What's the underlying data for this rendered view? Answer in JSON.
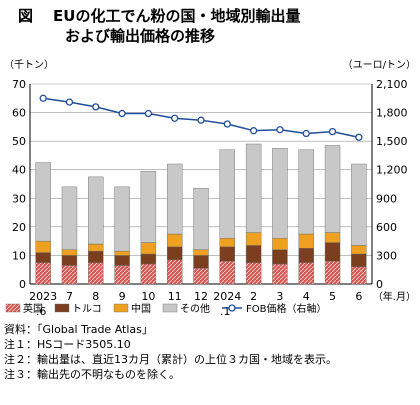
{
  "figure": {
    "label": "図",
    "title_line1": "EUの化工でん粉の国・地域別輸出量",
    "title_line2": "および輸出価格の推移"
  },
  "chart_data": {
    "type": "bar",
    "stacked": true,
    "y_left": {
      "label": "（千トン）",
      "lim": [
        0,
        70
      ],
      "ticks": [
        0,
        10,
        20,
        30,
        40,
        50,
        60,
        70
      ]
    },
    "y_right": {
      "label": "（ユーロ/トン）",
      "lim": [
        0,
        2100
      ],
      "ticks": [
        "0",
        "300",
        "600",
        "900",
        "1,200",
        "1,500",
        "1,800",
        "2,100"
      ]
    },
    "x_unit": "（年.月）",
    "categories": [
      {
        "main": "2023",
        "sub": ".6"
      },
      {
        "main": "7",
        "sub": ""
      },
      {
        "main": "8",
        "sub": ""
      },
      {
        "main": "9",
        "sub": ""
      },
      {
        "main": "10",
        "sub": ""
      },
      {
        "main": "11",
        "sub": ""
      },
      {
        "main": "12",
        "sub": ""
      },
      {
        "main": "2024",
        "sub": ".1"
      },
      {
        "main": "2",
        "sub": ""
      },
      {
        "main": "3",
        "sub": ""
      },
      {
        "main": "4",
        "sub": ""
      },
      {
        "main": "5",
        "sub": ""
      },
      {
        "main": "6",
        "sub": ""
      }
    ],
    "series": [
      {
        "name": "英国",
        "color": "#d9534f",
        "pattern": "hatch",
        "values": [
          7.5,
          6.5,
          7.5,
          6.5,
          7.0,
          8.5,
          5.5,
          8.0,
          7.5,
          7.0,
          7.5,
          8.0,
          6.0
        ]
      },
      {
        "name": "トルコ",
        "color": "#7b3f20",
        "values": [
          3.5,
          3.5,
          4.0,
          3.5,
          3.5,
          4.5,
          4.5,
          5.0,
          6.0,
          5.0,
          5.0,
          6.5,
          4.5
        ]
      },
      {
        "name": "中国",
        "color": "#f0a020",
        "values": [
          4.0,
          2.0,
          2.5,
          1.5,
          4.0,
          4.5,
          2.0,
          3.0,
          4.5,
          4.0,
          5.0,
          3.5,
          3.0
        ]
      },
      {
        "name": "その他",
        "color": "#c8c8c8",
        "values": [
          27.5,
          22.0,
          23.5,
          22.5,
          25.0,
          24.5,
          21.5,
          31.0,
          31.0,
          31.5,
          29.5,
          30.5,
          28.5
        ]
      }
    ],
    "line": {
      "name": "FOB価格（右軸）",
      "color": "#1f4e9a",
      "axis": "right",
      "values": [
        1950,
        1910,
        1860,
        1790,
        1790,
        1740,
        1720,
        1680,
        1610,
        1620,
        1580,
        1600,
        1540
      ]
    },
    "grid": true,
    "legend_position": "bottom"
  },
  "notes": [
    "資料：「Global Trade Atlas」",
    "注１：HSコード3505.10",
    "注２：輸出量は、直近13カ月（累計）の上位３カ国・地域を表示。",
    "注３：輸出先の不明なものを除く。"
  ]
}
